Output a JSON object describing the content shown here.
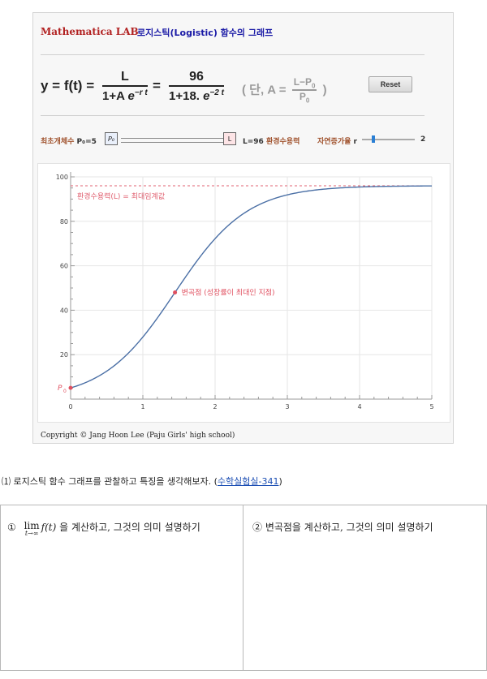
{
  "panel": {
    "brand": "Mathematica LAB",
    "title": "로지스틱(Logistic) 함수의 그래프",
    "formula": {
      "lhs": "y = f(t) =",
      "num1": "L",
      "den1_base": "1+A ",
      "den1_e": "e",
      "den1_exp": "−r t",
      "eq": "=",
      "num2": "96",
      "den2_base": "1+18. ",
      "den2_e": "e",
      "den2_exp": "−2 t",
      "note_open": "( 단, A =",
      "note_num": "L−P",
      "note_num_sub": "0",
      "note_den": "P",
      "note_den_sub": "0",
      "note_close": ")"
    },
    "reset_label": "Reset",
    "controls": {
      "p0_label": "최초개체수",
      "p0_value": "P₀=5",
      "p0_box": "P₀",
      "l_box": "L",
      "l_value": "L=96",
      "l_label": "환경수용력",
      "r_label": "자연증가율",
      "r_symbol": "r",
      "r_value": "2",
      "r_fraction": 0.22
    },
    "copyright": "Copyright © Jang Hoon Lee (Paju Girls' high school)"
  },
  "chart_data": {
    "type": "line",
    "x_ticks": [
      "0",
      "1",
      "2",
      "3",
      "4",
      "5"
    ],
    "y_ticks": [
      "20",
      "40",
      "60",
      "80",
      "100"
    ],
    "xlim": [
      0,
      5
    ],
    "ylim": [
      0,
      100
    ],
    "series": [
      {
        "type": "logistic",
        "L": 96,
        "A": 18,
        "r": 2,
        "color": "#4a6fa5"
      }
    ],
    "asymptote": {
      "y": 96,
      "label": "환경수용력(L) = 최대임계값",
      "color": "#e06070"
    },
    "inflection": {
      "x": 1.445,
      "y": 48,
      "label": "변곡점 (성장률이 최대인 지점)",
      "color": "#e05060"
    },
    "start_point": {
      "x": 0,
      "y": 5.05,
      "label": "P",
      "label_sub": "0",
      "color": "#e05060"
    }
  },
  "question": {
    "number": "⑴",
    "text": "로지스틱 함수 그래프를 관찰하고 특징을 생각해보자. (",
    "link": "수학실험실-341",
    "close": ")"
  },
  "table": {
    "cell1_num": "①",
    "cell1_lim": "lim",
    "cell1_sub": "t→∞",
    "cell1_fn": "f(t)",
    "cell1_text": "을 계산하고, 그것의 의미 설명하기",
    "cell2_text": "② 변곡점을 계산하고, 그것의 의미 설명하기"
  }
}
